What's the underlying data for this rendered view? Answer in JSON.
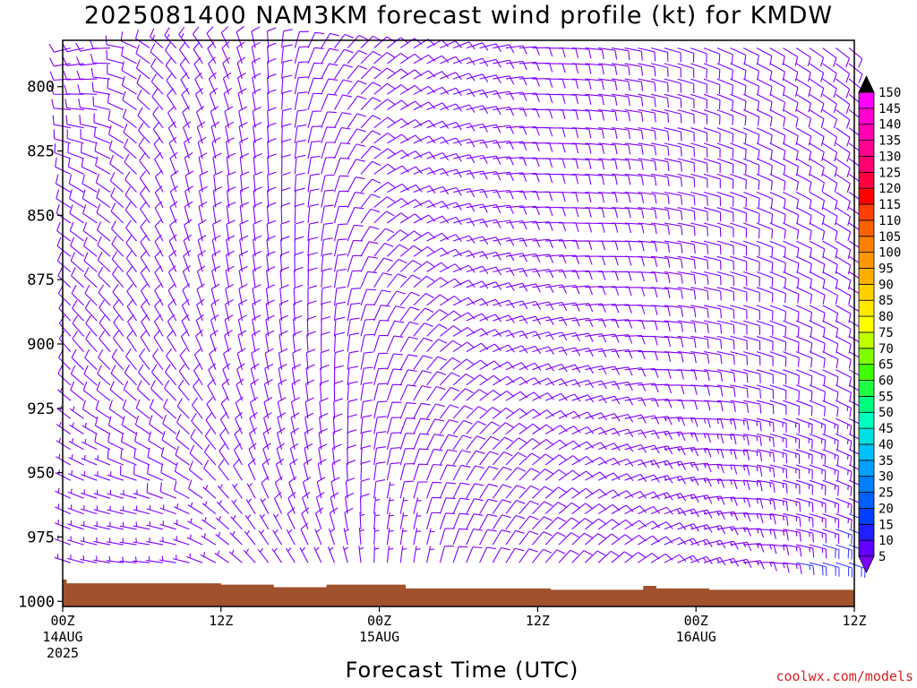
{
  "title": "2025081400 NAM3KM forecast wind profile (kt) for KMDW",
  "credit": "coolwx.com/models",
  "chart_data": {
    "type": "wind-barb profile",
    "title": "2025081400 NAM3KM forecast wind profile (kt) for KMDW",
    "xlabel": "Forecast Time (UTC)",
    "ylabel": "",
    "x_ticks": [
      {
        "hour": 0,
        "lines": [
          "00Z",
          "14AUG",
          "2025"
        ]
      },
      {
        "hour": 12,
        "lines": [
          "12Z"
        ]
      },
      {
        "hour": 24,
        "lines": [
          "00Z",
          "15AUG"
        ]
      },
      {
        "hour": 36,
        "lines": [
          "12Z"
        ]
      },
      {
        "hour": 48,
        "lines": [
          "00Z",
          "16AUG"
        ]
      },
      {
        "hour": 60,
        "lines": [
          "12Z"
        ]
      }
    ],
    "xlim": [
      0,
      60
    ],
    "y_ticks": [
      800,
      825,
      850,
      875,
      900,
      925,
      950,
      975,
      1000
    ],
    "ylim": [
      1002,
      782
    ],
    "y_scale": "pressure (inverted)",
    "colorbar": {
      "levels": [
        5,
        10,
        15,
        20,
        25,
        30,
        35,
        40,
        45,
        50,
        55,
        60,
        65,
        70,
        75,
        80,
        85,
        90,
        95,
        100,
        105,
        110,
        115,
        120,
        125,
        130,
        135,
        140,
        145,
        150
      ],
      "colors": [
        "#8000ff",
        "#6000ff",
        "#2020ff",
        "#0040ff",
        "#0060ff",
        "#0080ff",
        "#00a0ff",
        "#00c0ff",
        "#00e0e0",
        "#00ffc0",
        "#00ff80",
        "#20ff40",
        "#40ff00",
        "#80ff00",
        "#c0ff00",
        "#ffff00",
        "#ffe800",
        "#ffd000",
        "#ffb000",
        "#ff9800",
        "#ff8000",
        "#ff6000",
        "#ff4000",
        "#ff0000",
        "#ff0040",
        "#ff0070",
        "#ff0090",
        "#ff00b0",
        "#ff00d0",
        "#ff00ff"
      ],
      "under_color": "#8000ff",
      "over_color": "#000000"
    },
    "terrain": {
      "color": "#a0522d",
      "surface_pressure": [
        {
          "hour": 0,
          "p": 991.5
        },
        {
          "hour": 0.3,
          "p": 993
        },
        {
          "hour": 12,
          "p": 993.5
        },
        {
          "hour": 16,
          "p": 994.5
        },
        {
          "hour": 20,
          "p": 993.5
        },
        {
          "hour": 26,
          "p": 995
        },
        {
          "hour": 37,
          "p": 995.5
        },
        {
          "hour": 44,
          "p": 994
        },
        {
          "hour": 45,
          "p": 995
        },
        {
          "hour": 49,
          "p": 995.5
        },
        {
          "hour": 60,
          "p": 996
        }
      ]
    },
    "barb_levels_hpa": [
      785,
      791,
      797,
      803,
      809,
      816,
      822,
      828,
      834,
      841,
      847,
      853,
      860,
      866,
      872,
      878,
      885,
      891,
      897,
      903,
      910,
      916,
      922,
      929,
      935,
      941,
      947,
      953,
      960,
      966,
      972,
      978,
      985
    ],
    "barb_color": "#8000ff",
    "barb_color_strong": "#4040ff",
    "wind_keyframes": [
      {
        "hour": 0,
        "bands": [
          [
            785,
            255,
            12
          ],
          [
            840,
            300,
            10
          ],
          [
            900,
            320,
            8
          ],
          [
            950,
            300,
            6
          ],
          [
            985,
            290,
            5
          ]
        ]
      },
      {
        "hour": 3,
        "bands": [
          [
            785,
            260,
            12
          ],
          [
            840,
            300,
            10
          ],
          [
            900,
            320,
            9
          ],
          [
            950,
            290,
            7
          ],
          [
            985,
            280,
            6
          ]
        ]
      },
      {
        "hour": 6,
        "bands": [
          [
            785,
            300,
            12
          ],
          [
            840,
            320,
            9
          ],
          [
            900,
            330,
            9
          ],
          [
            950,
            290,
            8
          ],
          [
            985,
            275,
            6
          ]
        ]
      },
      {
        "hour": 9,
        "bands": [
          [
            785,
            320,
            13
          ],
          [
            840,
            345,
            9
          ],
          [
            900,
            330,
            10
          ],
          [
            950,
            300,
            8
          ],
          [
            985,
            280,
            7
          ]
        ]
      },
      {
        "hour": 12,
        "bands": [
          [
            785,
            330,
            12
          ],
          [
            840,
            355,
            10
          ],
          [
            900,
            345,
            10
          ],
          [
            950,
            320,
            8
          ],
          [
            985,
            300,
            6
          ]
        ]
      },
      {
        "hour": 15,
        "bands": [
          [
            785,
            350,
            10
          ],
          [
            840,
            355,
            12
          ],
          [
            900,
            350,
            11
          ],
          [
            950,
            340,
            8
          ],
          [
            985,
            320,
            6
          ]
        ]
      },
      {
        "hour": 18,
        "bands": [
          [
            785,
            20,
            10
          ],
          [
            840,
            5,
            12
          ],
          [
            900,
            355,
            12
          ],
          [
            950,
            345,
            10
          ],
          [
            985,
            330,
            7
          ]
        ]
      },
      {
        "hour": 21,
        "bands": [
          [
            785,
            40,
            9
          ],
          [
            840,
            20,
            10
          ],
          [
            900,
            5,
            10
          ],
          [
            950,
            355,
            9
          ],
          [
            985,
            340,
            7
          ]
        ]
      },
      {
        "hour": 24,
        "bands": [
          [
            785,
            50,
            8
          ],
          [
            840,
            60,
            8
          ],
          [
            900,
            20,
            8
          ],
          [
            950,
            10,
            8
          ],
          [
            985,
            5,
            6
          ]
        ]
      },
      {
        "hour": 27,
        "bands": [
          [
            785,
            60,
            8
          ],
          [
            840,
            70,
            9
          ],
          [
            900,
            40,
            8
          ],
          [
            950,
            20,
            8
          ],
          [
            985,
            10,
            7
          ]
        ]
      },
      {
        "hour": 30,
        "bands": [
          [
            785,
            70,
            9
          ],
          [
            840,
            80,
            10
          ],
          [
            900,
            60,
            9
          ],
          [
            950,
            30,
            9
          ],
          [
            985,
            20,
            8
          ]
        ]
      },
      {
        "hour": 33,
        "bands": [
          [
            785,
            80,
            10
          ],
          [
            840,
            85,
            10
          ],
          [
            900,
            70,
            10
          ],
          [
            950,
            40,
            10
          ],
          [
            985,
            30,
            9
          ]
        ]
      },
      {
        "hour": 36,
        "bands": [
          [
            785,
            90,
            10
          ],
          [
            840,
            90,
            11
          ],
          [
            900,
            75,
            11
          ],
          [
            950,
            50,
            10
          ],
          [
            985,
            40,
            9
          ]
        ]
      },
      {
        "hour": 39,
        "bands": [
          [
            785,
            95,
            10
          ],
          [
            840,
            95,
            11
          ],
          [
            900,
            80,
            12
          ],
          [
            950,
            60,
            11
          ],
          [
            985,
            45,
            10
          ]
        ]
      },
      {
        "hour": 42,
        "bands": [
          [
            785,
            100,
            10
          ],
          [
            840,
            95,
            10
          ],
          [
            900,
            85,
            12
          ],
          [
            950,
            70,
            12
          ],
          [
            985,
            50,
            11
          ]
        ]
      },
      {
        "hour": 45,
        "bands": [
          [
            785,
            105,
            9
          ],
          [
            840,
            100,
            10
          ],
          [
            900,
            95,
            12
          ],
          [
            950,
            75,
            13
          ],
          [
            985,
            60,
            12
          ]
        ]
      },
      {
        "hour": 48,
        "bands": [
          [
            785,
            110,
            9
          ],
          [
            840,
            105,
            10
          ],
          [
            900,
            100,
            12
          ],
          [
            950,
            85,
            13
          ],
          [
            985,
            70,
            13
          ]
        ]
      },
      {
        "hour": 51,
        "bands": [
          [
            785,
            115,
            8
          ],
          [
            840,
            110,
            9
          ],
          [
            900,
            105,
            11
          ],
          [
            950,
            95,
            14
          ],
          [
            985,
            80,
            15
          ]
        ]
      },
      {
        "hour": 54,
        "bands": [
          [
            785,
            120,
            8
          ],
          [
            840,
            115,
            9
          ],
          [
            900,
            110,
            11
          ],
          [
            950,
            105,
            14
          ],
          [
            985,
            95,
            16
          ]
        ]
      },
      {
        "hour": 57,
        "bands": [
          [
            785,
            125,
            8
          ],
          [
            840,
            120,
            9
          ],
          [
            900,
            115,
            11
          ],
          [
            950,
            110,
            14
          ],
          [
            985,
            105,
            18
          ]
        ]
      },
      {
        "hour": 60,
        "bands": [
          [
            785,
            130,
            8
          ],
          [
            840,
            125,
            9
          ],
          [
            900,
            120,
            11
          ],
          [
            950,
            115,
            15
          ],
          [
            985,
            110,
            20
          ]
        ]
      }
    ]
  }
}
